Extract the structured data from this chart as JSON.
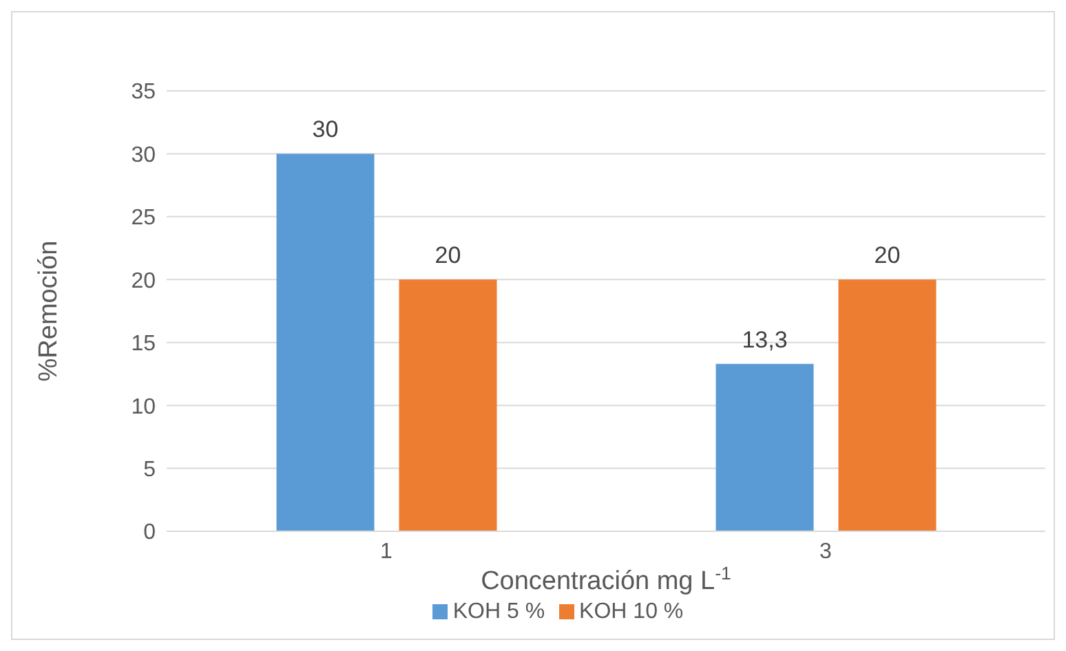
{
  "chart_data": {
    "type": "bar",
    "xlabel": "Concentración mg L$^{-1}$",
    "ylabel": "%Remoción",
    "categories": [
      "1",
      "3"
    ],
    "series": [
      {
        "name": "KOH 5 %",
        "color": "#5b9bd5",
        "values": [
          30,
          13.3
        ],
        "value_labels": [
          "30",
          "13,3"
        ]
      },
      {
        "name": "KOH 10 %",
        "color": "#ed7d31",
        "values": [
          20,
          20
        ],
        "value_labels": [
          "20",
          "20"
        ]
      }
    ],
    "ylim": [
      0,
      35
    ],
    "yticks": [
      0,
      5,
      10,
      15,
      20,
      25,
      30,
      35
    ],
    "grid": "y",
    "legend": "bottom"
  }
}
